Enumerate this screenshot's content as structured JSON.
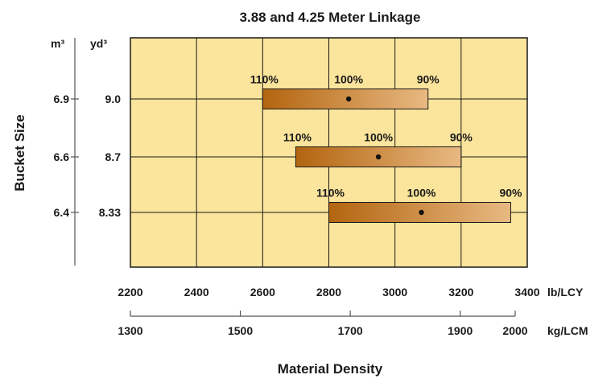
{
  "chart_data": {
    "type": "bar",
    "title": "3.88 and 4.25 Meter Linkage",
    "xlabel": "Material Density",
    "ylabel": "Bucket Size",
    "x_primary": {
      "unit": "lb/LCY",
      "range": [
        2200,
        3400
      ],
      "ticks": [
        "2200",
        "2400",
        "2600",
        "2800",
        "3000",
        "3200",
        "3400"
      ]
    },
    "x_secondary": {
      "unit": "kg/LCM",
      "ticks": [
        {
          "label": "1300",
          "value": 1300
        },
        {
          "label": "1500",
          "value": 1500
        },
        {
          "label": "1700",
          "value": 1700
        },
        {
          "label": "1900",
          "value": 1900
        },
        {
          "label": "2000",
          "value": 2000
        }
      ]
    },
    "y_units": {
      "metric": "m³",
      "imperial": "yd³"
    },
    "grid": true,
    "buckets": [
      {
        "m3": "6.9",
        "yd3": "9.0",
        "fill_110": 2600,
        "fill_100": 2860,
        "fill_90": 3100,
        "labels": {
          "p110": "110%",
          "p100": "100%",
          "p90": "90%"
        }
      },
      {
        "m3": "6.6",
        "yd3": "8.7",
        "fill_110": 2700,
        "fill_100": 2950,
        "fill_90": 3200,
        "labels": {
          "p110": "110%",
          "p100": "100%",
          "p90": "90%"
        }
      },
      {
        "m3": "6.4",
        "yd3": "8.33",
        "fill_110": 2800,
        "fill_100": 3080,
        "fill_90": 3350,
        "labels": {
          "p110": "110%",
          "p100": "100%",
          "p90": "90%"
        }
      }
    ],
    "colors": {
      "plot_bg": "#fbe49b",
      "grid": "#1a1a1a",
      "bar_dark": "#b3650f",
      "bar_light": "#e8b982",
      "dot": "#111111"
    }
  }
}
